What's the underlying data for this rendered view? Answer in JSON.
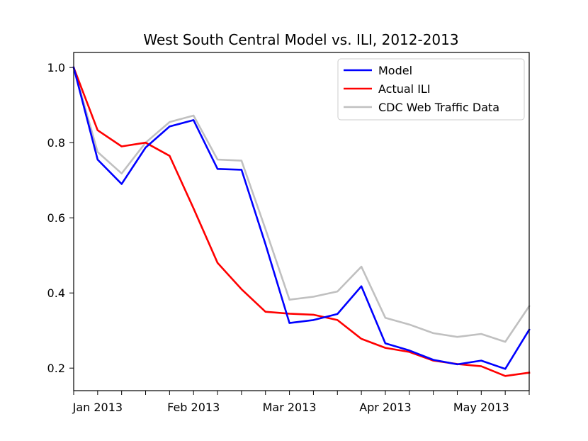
{
  "chart_data": {
    "type": "line",
    "title": "West South Central Model vs. ILI, 2012-2013",
    "xlabel": "",
    "ylabel": "",
    "ylim": [
      0.14,
      1.04
    ],
    "y_ticks": [
      0.2,
      0.4,
      0.6,
      0.8,
      1.0
    ],
    "y_tick_labels": [
      "0.2",
      "0.4",
      "0.6",
      "0.8",
      "1.0"
    ],
    "x_range": [
      0,
      19
    ],
    "x_label_ticks": [
      {
        "x": 1,
        "label": "Jan 2013"
      },
      {
        "x": 5,
        "label": "Feb 2013"
      },
      {
        "x": 9,
        "label": "Mar 2013"
      },
      {
        "x": 13,
        "label": "Apr 2013"
      },
      {
        "x": 17,
        "label": "May 2013"
      }
    ],
    "x_minor_ticks": [
      0,
      1,
      2,
      3,
      4,
      5,
      6,
      7,
      8,
      9,
      10,
      11,
      12,
      13,
      14,
      15,
      16,
      17,
      18,
      19
    ],
    "legend_position": "top-right",
    "series": [
      {
        "name": "Model",
        "color": "#0000ff",
        "values": [
          1.0,
          0.755,
          0.69,
          0.787,
          0.843,
          0.86,
          0.73,
          0.728,
          0.53,
          0.32,
          0.328,
          0.344,
          0.418,
          0.266,
          0.247,
          0.222,
          0.21,
          0.22,
          0.198,
          0.302
        ]
      },
      {
        "name": "Actual ILI",
        "color": "#ff0000",
        "values": [
          1.0,
          0.833,
          0.79,
          0.8,
          0.765,
          0.625,
          0.48,
          0.41,
          0.35,
          0.345,
          0.342,
          0.328,
          0.278,
          0.254,
          0.243,
          0.22,
          0.211,
          0.205,
          0.179,
          0.188
        ]
      },
      {
        "name": "CDC Web Traffic Data",
        "color": "#c0c0c0",
        "values": [
          1.0,
          0.775,
          0.718,
          0.8,
          0.855,
          0.872,
          0.755,
          0.752,
          0.57,
          0.382,
          0.39,
          0.404,
          0.47,
          0.334,
          0.316,
          0.293,
          0.283,
          0.291,
          0.27,
          0.365
        ]
      }
    ]
  }
}
